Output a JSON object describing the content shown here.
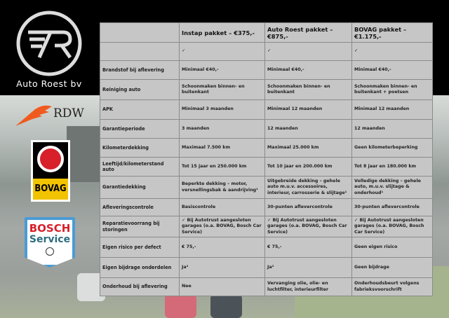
{
  "brand": {
    "name": "Auto Roest bv",
    "logo_text": "7R"
  },
  "partners": {
    "rdw": "RDW",
    "bovag": "BOVAG",
    "bosch_1": "BOSCH",
    "bosch_2": "Service"
  },
  "table": {
    "headers": [
      "",
      "Instap pakket – €375,-",
      "Auto Roest pakket – €875,-",
      "BOVAG pakket – €1.175,-"
    ],
    "rows": [
      {
        "label": "",
        "values": [
          "✓",
          "✓",
          "✓"
        ]
      },
      {
        "label": "Brandstof bij aflevering",
        "values": [
          "Minimaal €40,-",
          "Minimaal €40,-",
          "Minimaal €40,-"
        ]
      },
      {
        "label": "Reiniging auto",
        "values": [
          "Schoonmaken binnen- en buitenkant",
          "Schoonmaken binnen- en buitenkant",
          "Schoonmaken binnen- en buitenkant + poetsen"
        ]
      },
      {
        "label": "APK",
        "values": [
          "Minimaal 3 maanden",
          "Minimaal 12 maanden",
          "Minimaal 12 maanden"
        ]
      },
      {
        "label": "Garantieperiode",
        "values": [
          "3 maanden",
          "12 maanden",
          "12 maanden"
        ]
      },
      {
        "label": "Kilometerdekking",
        "values": [
          "Maximaal 7.500 km",
          "Maximaal 25.000 km",
          "Geen kilometerbeperking"
        ]
      },
      {
        "label": "Leeftijd/kilometerstand auto",
        "values": [
          "Tot 15 jaar en 250.000 km",
          "Tot 10 jaar en 200.000 km",
          "Tot 8 jaar en 180.000 km"
        ]
      },
      {
        "label": "Garantiedekking",
        "values": [
          "Beperkte dekking – motor, versnellingsbak & aandrijving¹",
          "Uitgebreide dekking – gehele auto m.u.v. accessoires, interieur, carrosserie & slijtage¹",
          "Volledige dekking – gehele auto, m.u.v. slijtage & onderhoud¹"
        ]
      },
      {
        "label": "Afleveringscontrole",
        "values": [
          "Basiscontrole",
          "30-punten aflevercontrole",
          "30-punten aflevercontrole"
        ]
      },
      {
        "label": "Reparatievoorrang bij storingen",
        "values": [
          "✓ Bij Autotrust aangesloten garages (o.a. BOVAG, Bosch Car Service)",
          "✓ Bij Autotrust aangesloten garages (o.a. BOVAG, Bosch Car Service)",
          "✓ Bij Autotrust aangesloten garages (o.a. BOVAG, Bosch Car Service)"
        ]
      },
      {
        "label": "Eigen risico per defect",
        "values": [
          "€ 75,-",
          "€ 75,-",
          "Geen eigen risico"
        ]
      },
      {
        "label": "Eigen bijdrage onderdelen",
        "values": [
          "Ja²",
          "Ja²",
          "Geen bijdrage"
        ]
      },
      {
        "label": "Onderhoud bij aflevering",
        "values": [
          "Nee",
          "Vervanging olie, olie- en luchtfilter, interieurfilter",
          "Onderhoudsbeurt volgens fabrieksvoorschrift"
        ]
      }
    ]
  }
}
